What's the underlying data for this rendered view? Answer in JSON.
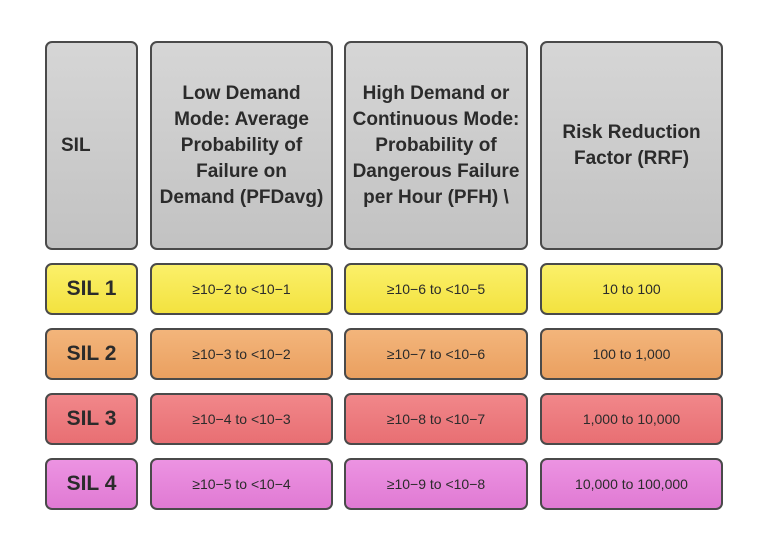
{
  "headers": {
    "sil": "SIL",
    "low_demand": "Low Demand Mode: Average Probability of Failure on Demand (PFDavg)",
    "high_demand": "High Demand or Continuous Mode: Probability of Dangerous Failure per Hour (PFH) \\",
    "rrf": "Risk Reduction Factor (RRF)"
  },
  "rows": [
    {
      "level": "SIL 1",
      "pfd": "≥10−2 to <10−1",
      "pfh": "≥10−6 to <10−5",
      "rrf": "10 to 100",
      "color": "#f6e74e"
    },
    {
      "level": "SIL 2",
      "pfd": "≥10−3 to <10−2",
      "pfh": "≥10−7 to <10−6",
      "rrf": "100 to 1,000",
      "color": "#eea96b"
    },
    {
      "level": "SIL 3",
      "pfd": "≥10−4 to <10−3",
      "pfh": "≥10−8 to <10−7",
      "rrf": "1,000 to 10,000",
      "color": "#ec7b7e"
    },
    {
      "level": "SIL 4",
      "pfd": "≥10−5 to <10−4",
      "pfh": "≥10−9 to <10−8",
      "rrf": "10,000 to 100,000",
      "color": "#e686db"
    }
  ]
}
